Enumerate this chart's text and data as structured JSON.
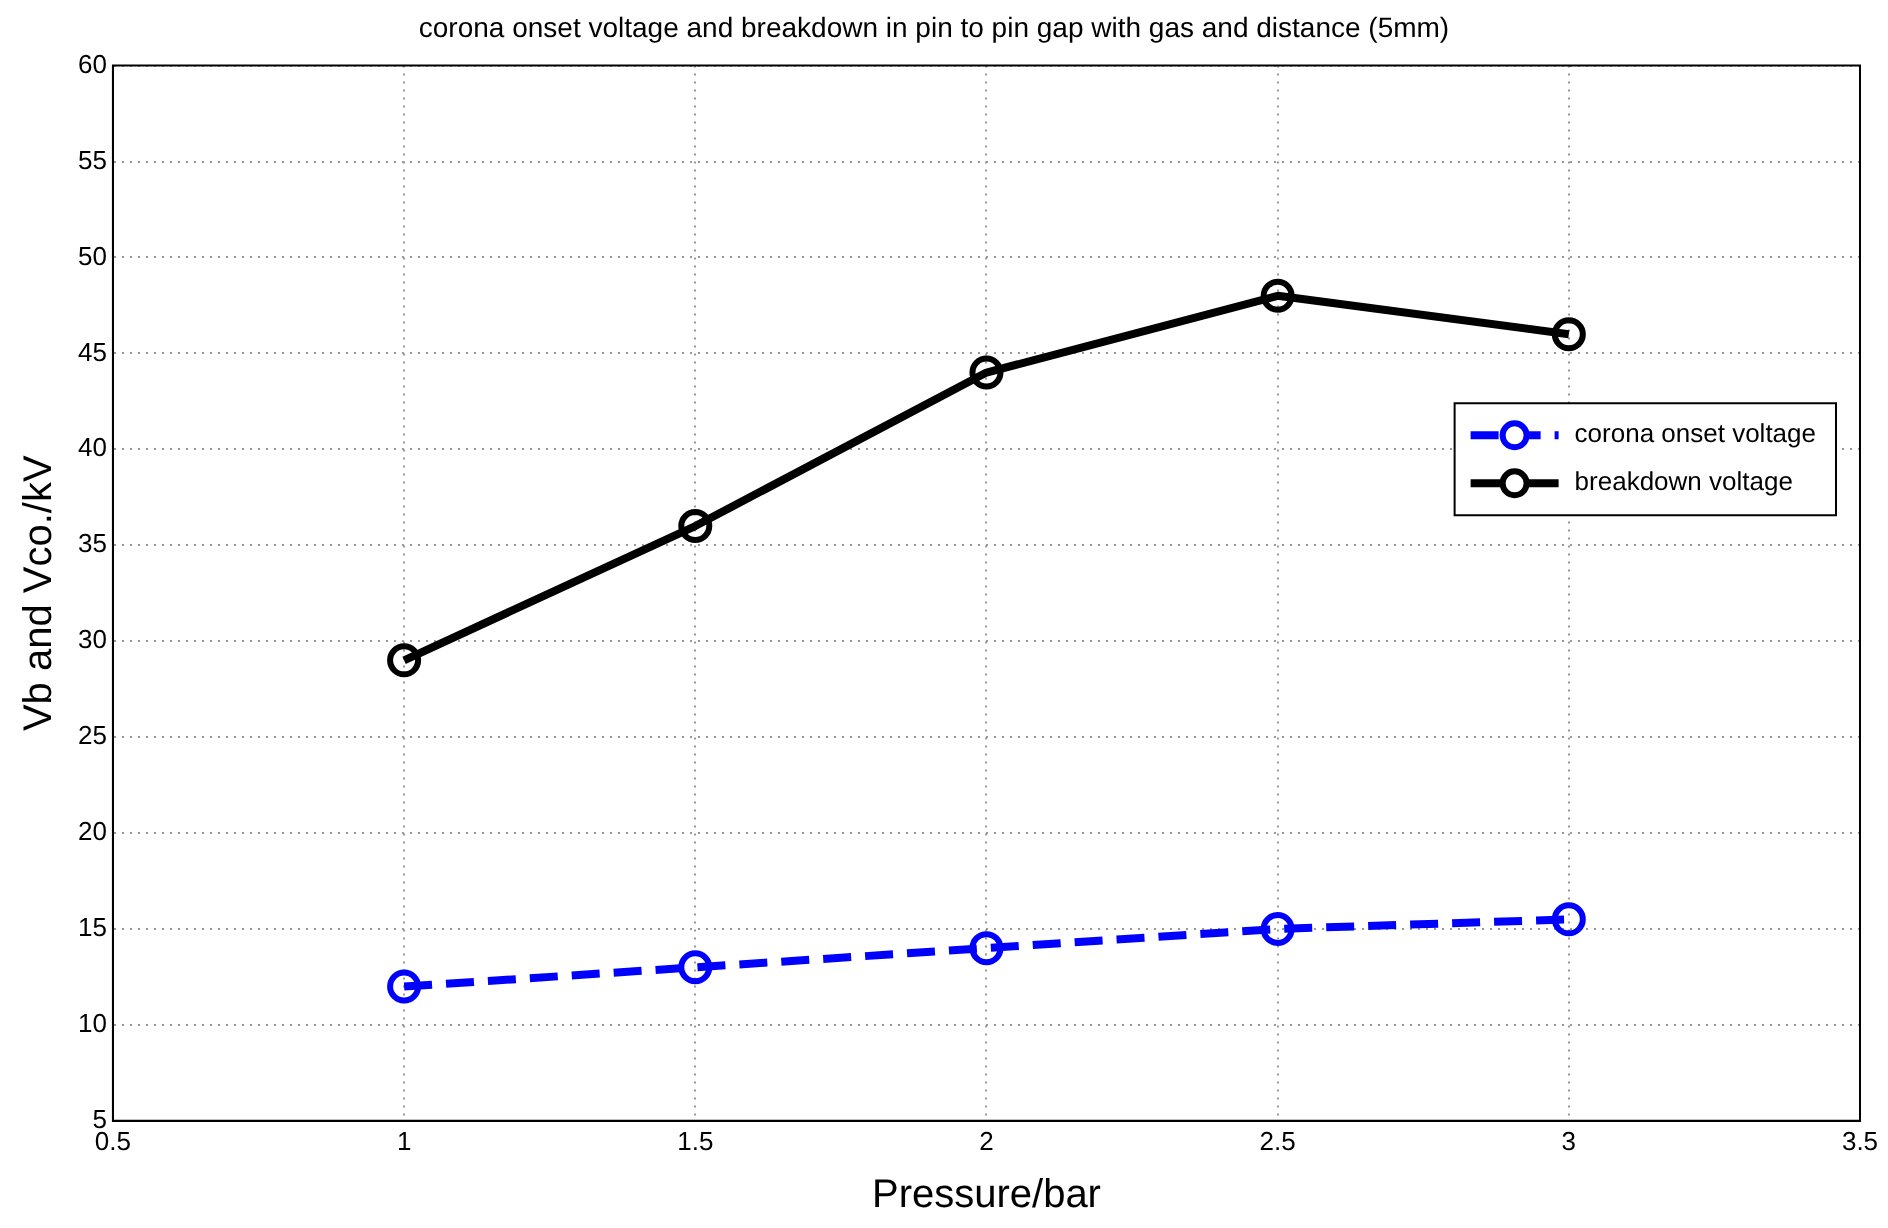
{
  "chart_data": {
    "type": "line",
    "title": "corona onset voltage and breakdown in pin to pin gap with gas and distance (5mm)",
    "xlabel": "Pressure/bar",
    "ylabel": "Vb and Vco./kV",
    "x": [
      1,
      1.5,
      2,
      2.5,
      3
    ],
    "series": [
      {
        "name": "corona onset voltage",
        "color": "#0000ff",
        "values": [
          12,
          13,
          14,
          15,
          15.5
        ],
        "line_style": "dashed"
      },
      {
        "name": "breakdown voltage",
        "color": "#000000",
        "values": [
          29,
          36,
          44,
          48,
          46
        ],
        "line_style": "solid"
      }
    ],
    "xlim": [
      0.5,
      3.5
    ],
    "xticks": [
      0.5,
      1,
      1.5,
      2,
      2.5,
      3,
      3.5
    ],
    "ylim": [
      5,
      60
    ],
    "yticks": [
      5,
      10,
      15,
      20,
      25,
      30,
      35,
      40,
      45,
      50,
      55,
      60
    ],
    "grid": true,
    "legend": "right",
    "marker": "circle"
  }
}
